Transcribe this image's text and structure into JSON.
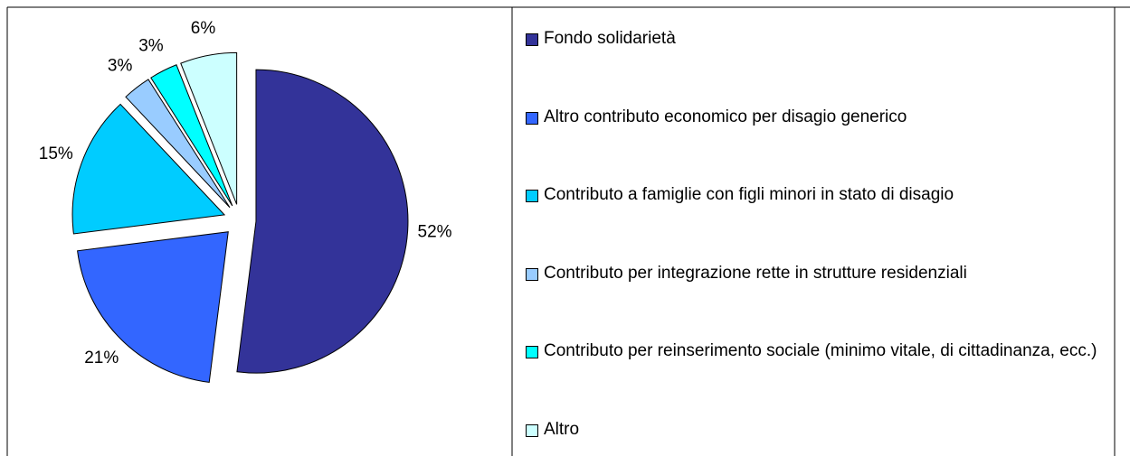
{
  "chart_data": {
    "type": "pie",
    "categories": [
      "Fondo solidarietà",
      "Altro contributo economico per disagio generico",
      "Contributo a famiglie con figli minori in stato di disagio",
      "Contributo per integrazione rette in strutture residenziali",
      "Contributo per reinserimento sociale (minimo vitale, di cittadinanza, ecc.)",
      "Altro"
    ],
    "values": [
      52,
      21,
      15,
      3,
      3,
      6
    ],
    "value_labels": [
      "52%",
      "21%",
      "15%",
      "3%",
      "3%",
      "6%"
    ],
    "colors": [
      "#333399",
      "#3366ff",
      "#00ccff",
      "#99ccff",
      "#00ffff",
      "#ccffff"
    ],
    "legend": "right"
  }
}
